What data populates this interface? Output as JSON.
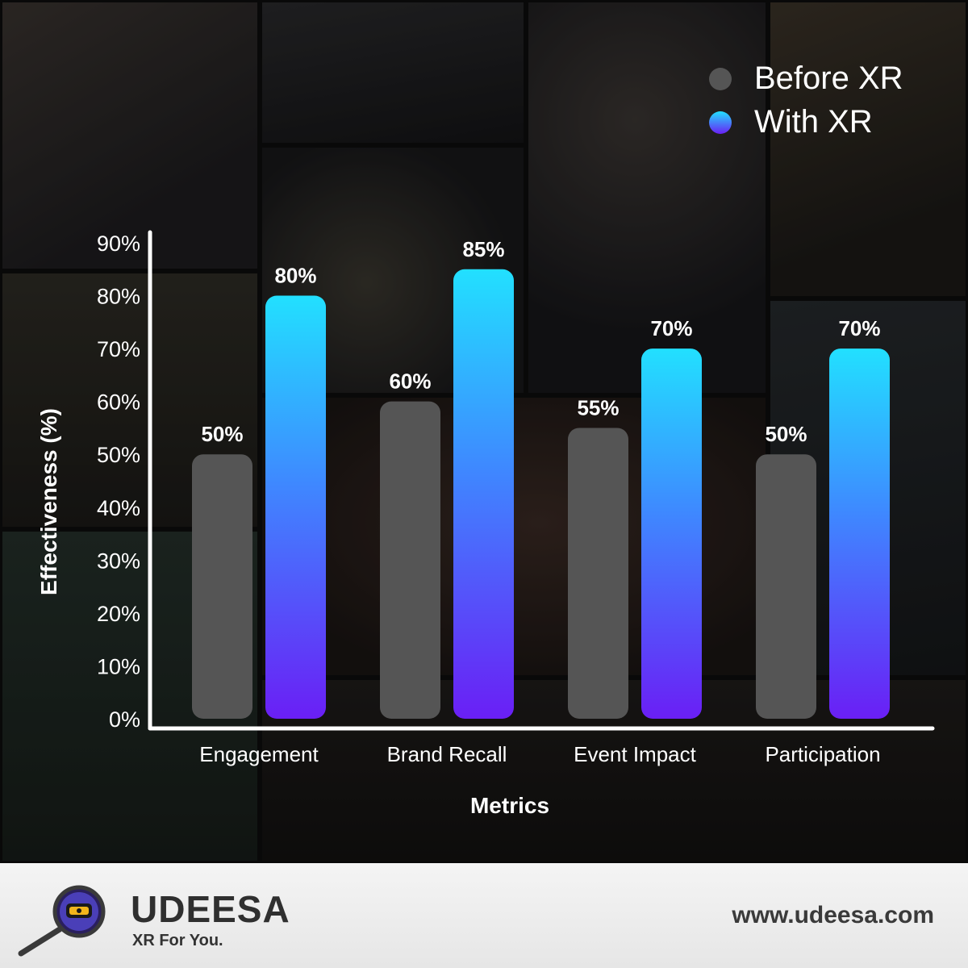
{
  "colors": {
    "before": "#555555",
    "with_top": "#22e0ff",
    "with_mid": "#3f87ff",
    "with_bottom": "#6a1ff5",
    "axis": "#ffffff",
    "footer_bg": "#ececec"
  },
  "chart_data": {
    "type": "bar",
    "title": "",
    "xlabel": "Metrics",
    "ylabel": "Effectiveness (%)",
    "ylim": [
      0,
      90
    ],
    "yticks": [
      "0%",
      "10%",
      "20%",
      "30%",
      "40%",
      "50%",
      "60%",
      "70%",
      "80%",
      "90%"
    ],
    "categories": [
      "Engagement",
      "Brand Recall",
      "Event Impact",
      "Participation"
    ],
    "series": [
      {
        "name": "Before XR",
        "values": [
          50,
          60,
          55,
          50
        ],
        "labels": [
          "50%",
          "60%",
          "55%",
          "50%"
        ]
      },
      {
        "name": "With XR",
        "values": [
          80,
          85,
          70,
          70
        ],
        "labels": [
          "80%",
          "85%",
          "70%",
          "70%"
        ]
      }
    ],
    "legend_position": "top-right",
    "grid": false
  },
  "footer": {
    "brand": "UDEESA",
    "tagline": "XR For You.",
    "url": "www.udeesa.com",
    "logo_icon": "magnifier-vr-headset-icon"
  }
}
